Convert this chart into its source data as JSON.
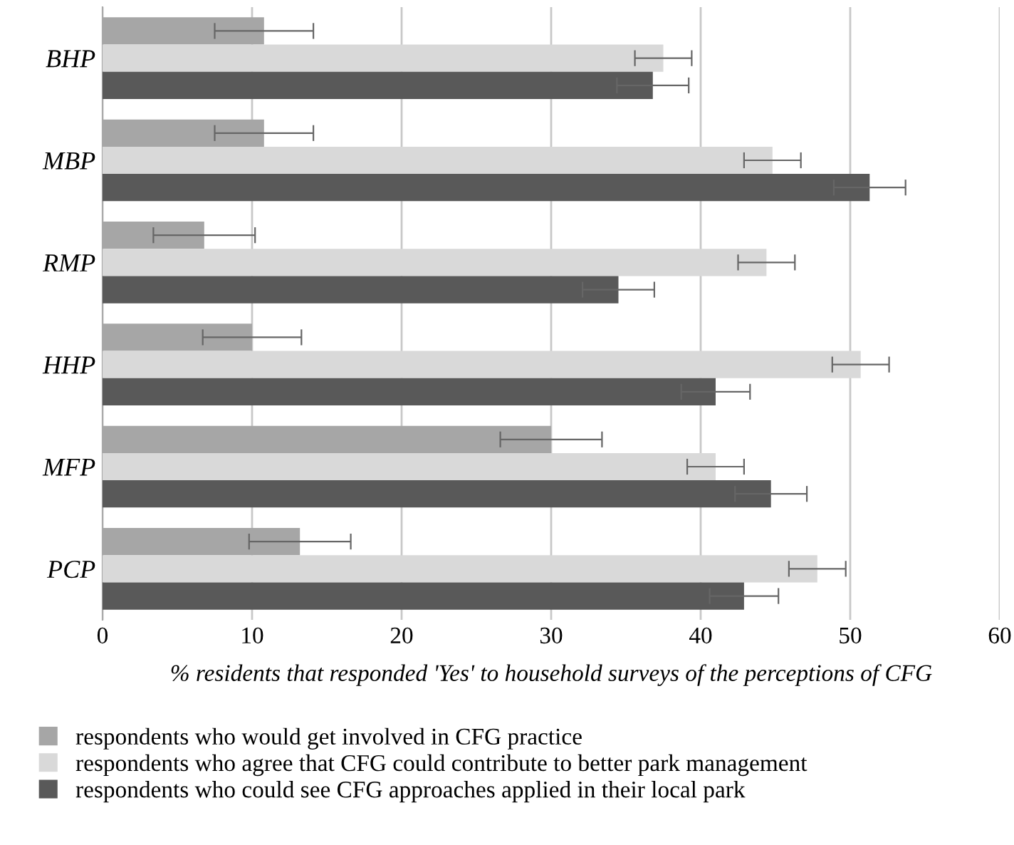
{
  "chart_data": {
    "type": "bar",
    "orientation": "horizontal",
    "xlabel": "% residents that responded 'Yes' to household surveys of the perceptions of CFG",
    "categories": [
      "BHP",
      "MBP",
      "RMP",
      "HHP",
      "MFP",
      "PCP"
    ],
    "series": [
      {
        "name": "respondents who would get involved in CFG practice",
        "color": "#a6a6a6",
        "values": [
          10.8,
          10.8,
          6.8,
          10.0,
          30.0,
          13.2
        ],
        "errors": [
          3.3,
          3.3,
          3.4,
          3.3,
          3.4,
          3.4
        ]
      },
      {
        "name": "respondents who agree that CFG could contribute to better park management",
        "color": "#d9d9d9",
        "values": [
          37.5,
          44.8,
          44.4,
          50.7,
          41.0,
          47.8
        ],
        "errors": [
          1.9,
          1.9,
          1.9,
          1.9,
          1.9,
          1.9
        ]
      },
      {
        "name": "respondents who could see CFG approaches applied in their local park",
        "color": "#595959",
        "values": [
          36.8,
          51.3,
          34.5,
          41.0,
          44.7,
          42.9
        ],
        "errors": [
          2.4,
          2.4,
          2.4,
          2.3,
          2.4,
          2.3
        ]
      }
    ],
    "xlim": [
      0,
      60
    ],
    "xticks": [
      0,
      10,
      20,
      30,
      40,
      50,
      60
    ],
    "grid": "x",
    "legend": "bottom"
  }
}
